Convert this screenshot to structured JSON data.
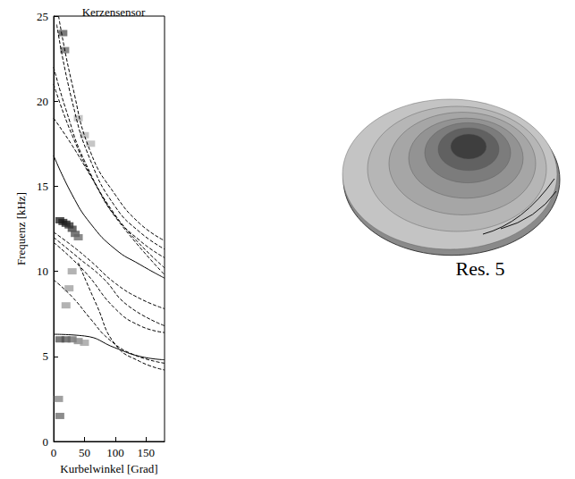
{
  "chart_data": {
    "type": "line",
    "title": "Kerzensensor",
    "x_label": "Kurbelwinkel [Grad]",
    "y_label": "Frequenz [kHz]",
    "xlim": [
      0,
      180
    ],
    "xticks": [
      0,
      50,
      100,
      150
    ],
    "ylim": [
      0,
      25
    ],
    "yticks": [
      0,
      5,
      10,
      15,
      20,
      25
    ],
    "grid": false,
    "series": [
      {
        "color": "#000000",
        "line_style": "dashed",
        "x": [
          8,
          30,
          60,
          100,
          140,
          180
        ],
        "values": [
          25,
          21,
          17,
          14.5,
          12.8,
          11.8
        ]
      },
      {
        "color": "#000000",
        "line_style": "dashed",
        "x": [
          5,
          30,
          60,
          100,
          140,
          180
        ],
        "values": [
          24.5,
          20,
          16.5,
          13.8,
          12.3,
          11.3
        ]
      },
      {
        "color": "#000000",
        "line_style": "dashed",
        "x": [
          0,
          20,
          50,
          100,
          140,
          180
        ],
        "values": [
          22,
          19.5,
          16.5,
          13.3,
          11.8,
          10.8
        ]
      },
      {
        "color": "#000000",
        "line_style": "dashed",
        "x": [
          0,
          30,
          70,
          110,
          180
        ],
        "values": [
          21,
          18,
          15,
          12.8,
          10.2
        ]
      },
      {
        "color": "#000000",
        "line_style": "dashed",
        "x": [
          0,
          30,
          60,
          100,
          180
        ],
        "values": [
          19,
          17.4,
          15.6,
          13.2,
          9.8
        ]
      },
      {
        "color": "#000000",
        "line_style": "solid",
        "x": [
          0,
          30,
          60,
          100,
          140,
          180
        ],
        "values": [
          16.8,
          14.5,
          12.8,
          11.3,
          10.4,
          9.6
        ]
      },
      {
        "color": "#000000",
        "line_style": "dashed",
        "x": [
          0,
          30,
          60,
          100,
          140,
          180
        ],
        "values": [
          12.3,
          11.5,
          10.6,
          9.3,
          8.4,
          7.8
        ]
      },
      {
        "color": "#000000",
        "line_style": "dashed",
        "x": [
          0,
          40,
          80,
          120,
          180
        ],
        "values": [
          12,
          10.8,
          9.6,
          8,
          6.8
        ]
      },
      {
        "color": "#000000",
        "line_style": "dashed",
        "x": [
          0,
          50,
          100,
          140,
          180
        ],
        "values": [
          11.7,
          10,
          7.8,
          6.8,
          6.4
        ]
      },
      {
        "color": "#000000",
        "line_style": "dashed",
        "x": [
          0,
          30,
          60,
          90,
          130,
          180
        ],
        "values": [
          9.5,
          8.5,
          7.2,
          6,
          5.1,
          4.6
        ]
      },
      {
        "color": "#000000",
        "line_style": "solid",
        "x": [
          0,
          50,
          100,
          140,
          180
        ],
        "values": [
          6.3,
          6.2,
          5.5,
          5,
          4.8
        ]
      },
      {
        "color": "#000000",
        "line_style": "dashed",
        "x": [
          40,
          70,
          100,
          140,
          180
        ],
        "values": [
          10.5,
          8,
          5.7,
          4.7,
          4.2
        ]
      }
    ],
    "spectrogram": {
      "points": [
        [
          10,
          13,
          0.9
        ],
        [
          15,
          12.9,
          0.9
        ],
        [
          20,
          12.8,
          0.9
        ],
        [
          25,
          12.7,
          0.85
        ],
        [
          30,
          12.5,
          0.8
        ],
        [
          35,
          12.2,
          0.7
        ],
        [
          40,
          12,
          0.6
        ],
        [
          10,
          1.5,
          0.6
        ],
        [
          8,
          2.5,
          0.5
        ],
        [
          10,
          6,
          0.7
        ],
        [
          20,
          6,
          0.7
        ],
        [
          30,
          6,
          0.6
        ],
        [
          40,
          5.9,
          0.5
        ],
        [
          50,
          5.8,
          0.4
        ],
        [
          15,
          24,
          0.7
        ],
        [
          18,
          23,
          0.6
        ],
        [
          20,
          8,
          0.4
        ],
        [
          25,
          9,
          0.4
        ],
        [
          30,
          10,
          0.4
        ],
        [
          40,
          19,
          0.3
        ],
        [
          50,
          18,
          0.3
        ],
        [
          60,
          17.5,
          0.3
        ]
      ]
    }
  },
  "mode_shape": {
    "label": "Res. 5"
  }
}
